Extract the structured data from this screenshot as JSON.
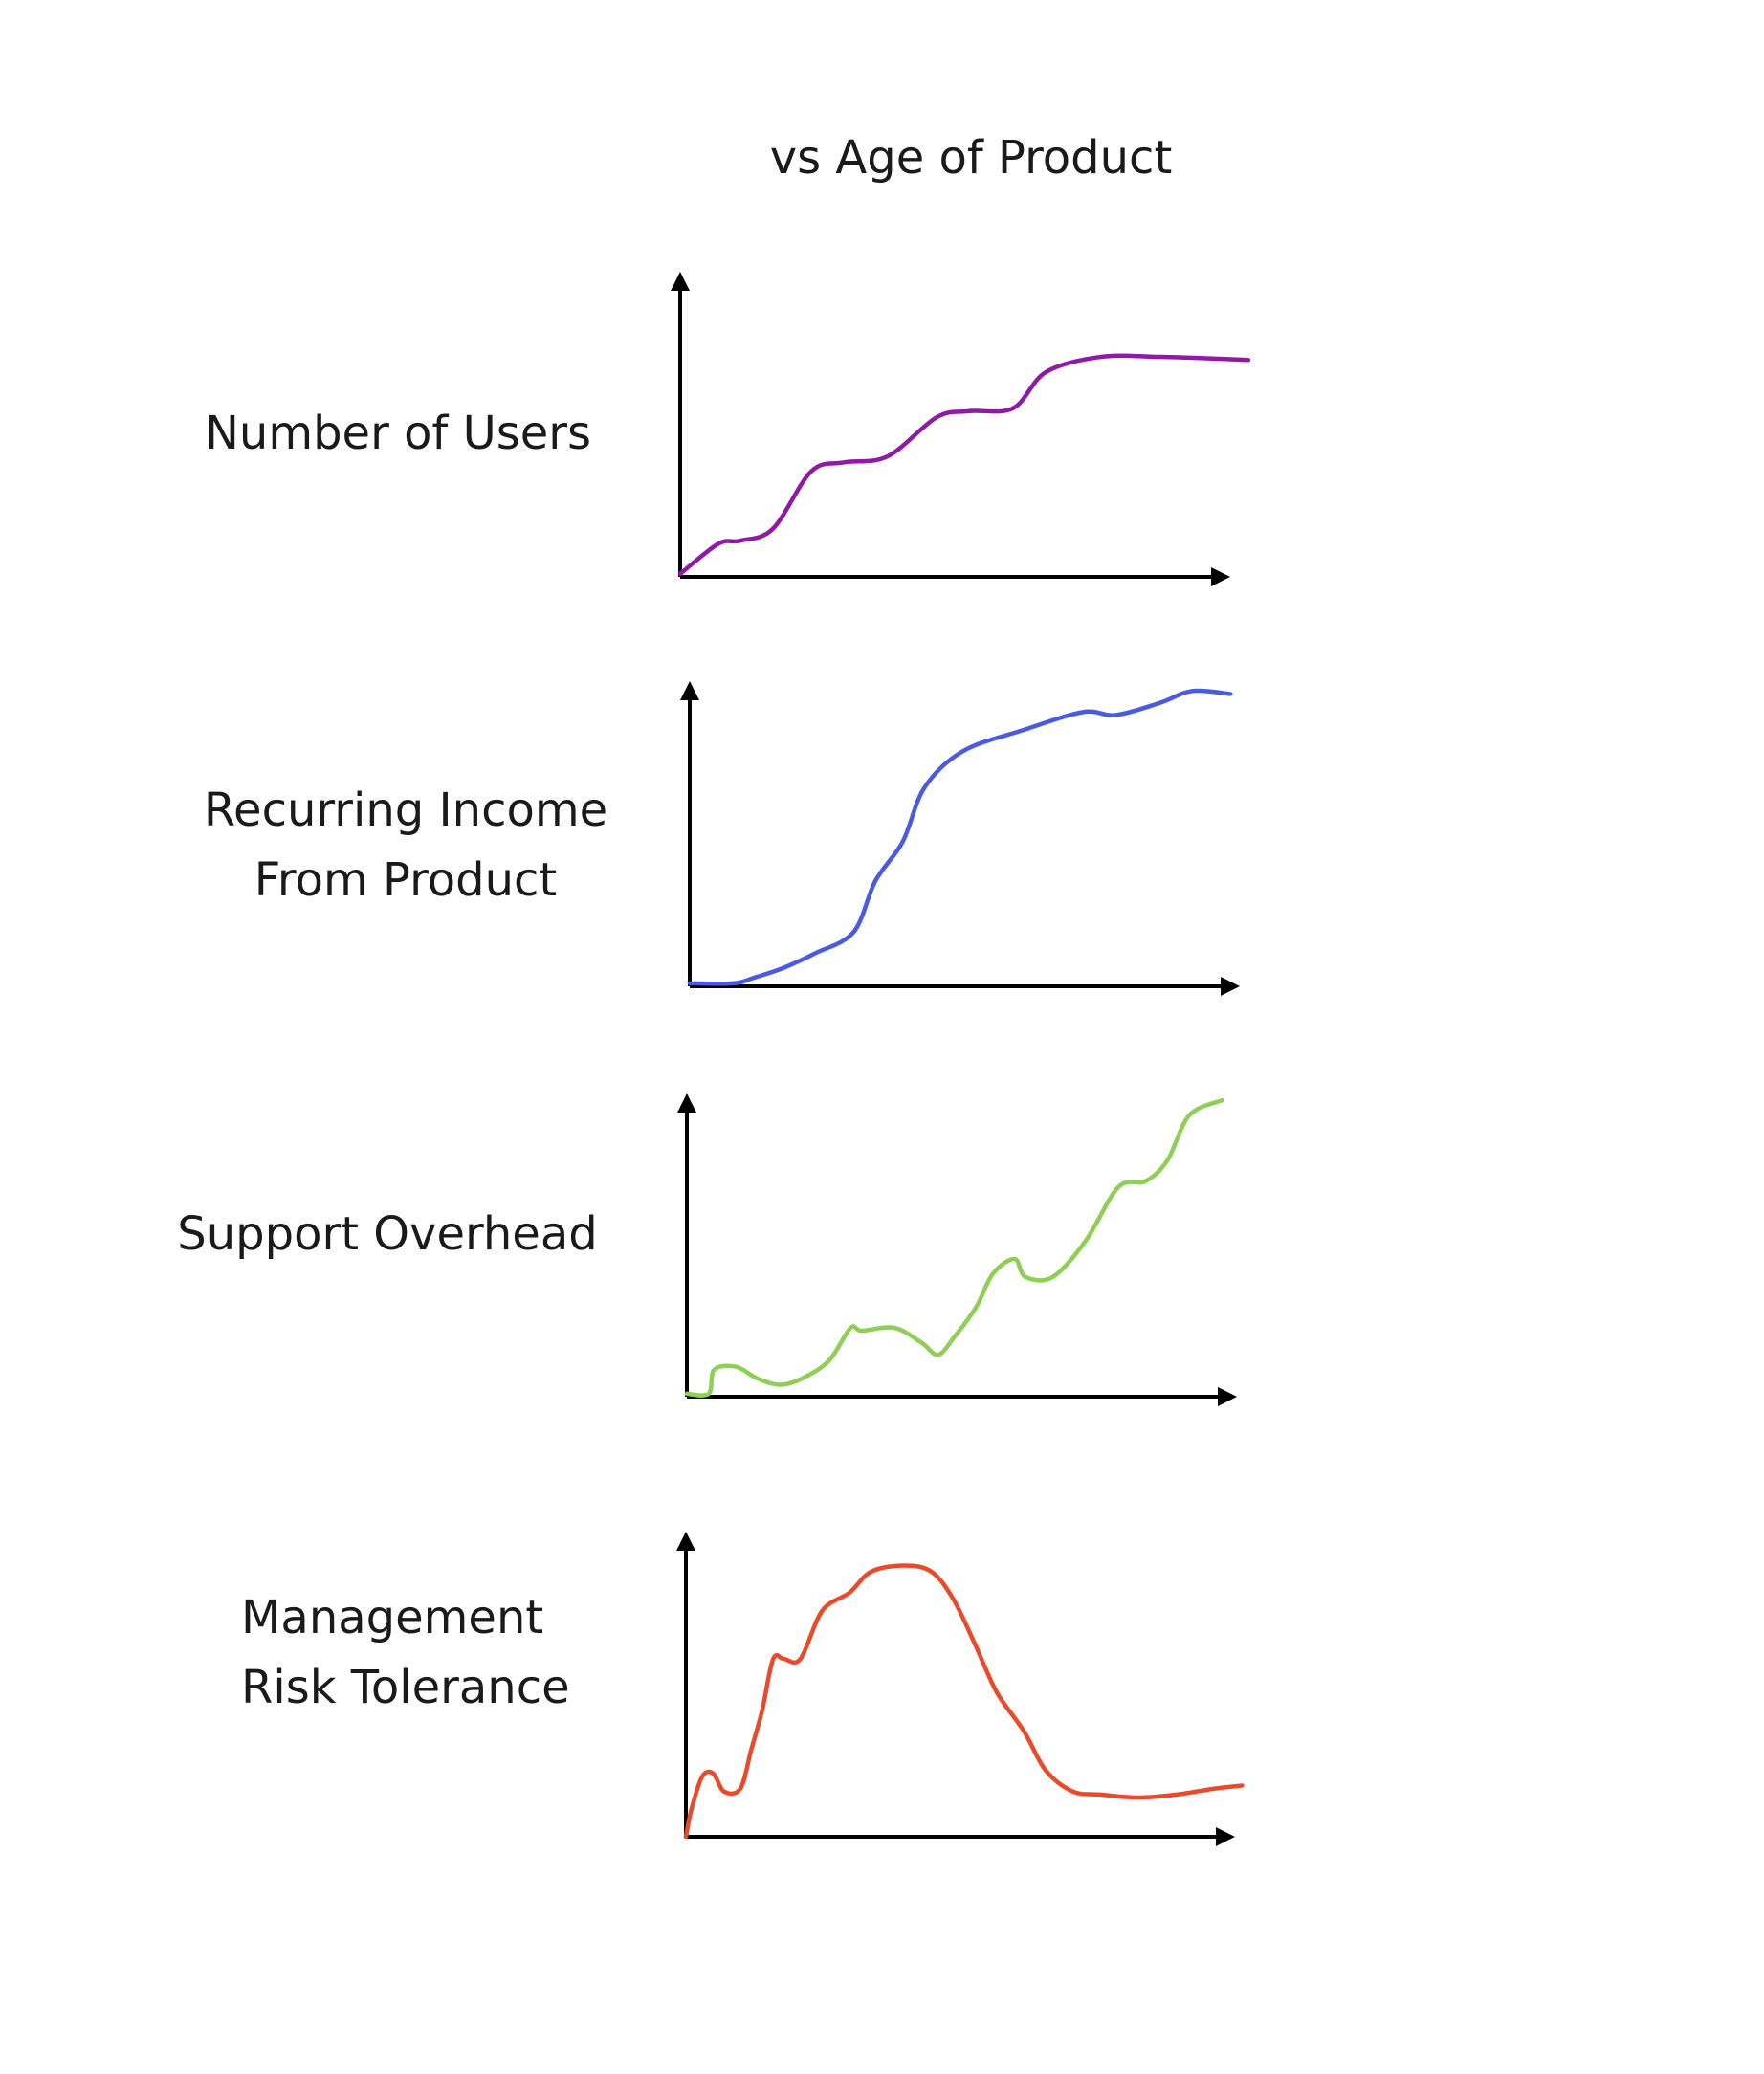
{
  "title": "vs Age of Product",
  "chart_data": [
    {
      "type": "line",
      "ylabel": [
        "Number of Users"
      ],
      "xlim": [
        0,
        100
      ],
      "ylim": [
        0,
        100
      ],
      "series": [
        {
          "color": "#8e1aa6",
          "x": [
            0,
            7,
            11,
            17,
            24,
            30,
            38,
            47,
            53,
            61,
            67,
            77,
            88,
            104
          ],
          "values": [
            1,
            11,
            12,
            16,
            35,
            38,
            40,
            53,
            55,
            56,
            68,
            73,
            73,
            72
          ]
        }
      ]
    },
    {
      "type": "line",
      "ylabel": [
        "Recurring Income",
        "From Product"
      ],
      "xlim": [
        0,
        100
      ],
      "ylim": [
        0,
        100
      ],
      "series": [
        {
          "color": "#4a5be0",
          "x": [
            0,
            8,
            12,
            17,
            23,
            30,
            34,
            39,
            43,
            50,
            61,
            72,
            78,
            86,
            92,
            99
          ],
          "values": [
            1,
            1,
            3,
            6,
            11,
            18,
            35,
            48,
            66,
            78,
            85,
            91,
            90,
            94,
            98,
            97
          ]
        }
      ]
    },
    {
      "type": "line",
      "ylabel": [
        "Support Overhead"
      ],
      "xlim": [
        0,
        100
      ],
      "ylim": [
        0,
        100
      ],
      "series": [
        {
          "color": "#8fcf55",
          "x": [
            0,
            4,
            5,
            9,
            13,
            17,
            21,
            26,
            30,
            32,
            38,
            43,
            46,
            49,
            53,
            56,
            60,
            62,
            67,
            73,
            79,
            84,
            88,
            92,
            98
          ],
          "values": [
            1,
            1,
            9,
            10,
            6,
            4,
            6,
            12,
            23,
            22,
            23,
            18,
            14,
            20,
            30,
            41,
            46,
            40,
            40,
            52,
            70,
            72,
            79,
            94,
            99
          ]
        }
      ]
    },
    {
      "type": "line",
      "ylabel": [
        "Management",
        "Risk Tolerance"
      ],
      "xlim": [
        0,
        100
      ],
      "ylim": [
        0,
        100
      ],
      "series": [
        {
          "color": "#e94b2a",
          "x": [
            0,
            1,
            3,
            5,
            7,
            10,
            12,
            14,
            16,
            18,
            21,
            25,
            30,
            34,
            40,
            45,
            49,
            53,
            57,
            62,
            66,
            71,
            76,
            83,
            90,
            97,
            102
          ],
          "values": [
            0,
            9,
            20,
            21,
            15,
            16,
            29,
            42,
            59,
            59,
            59,
            75,
            81,
            88,
            90,
            88,
            79,
            64,
            48,
            35,
            22,
            15,
            14,
            13,
            14,
            16,
            17
          ]
        }
      ]
    }
  ]
}
